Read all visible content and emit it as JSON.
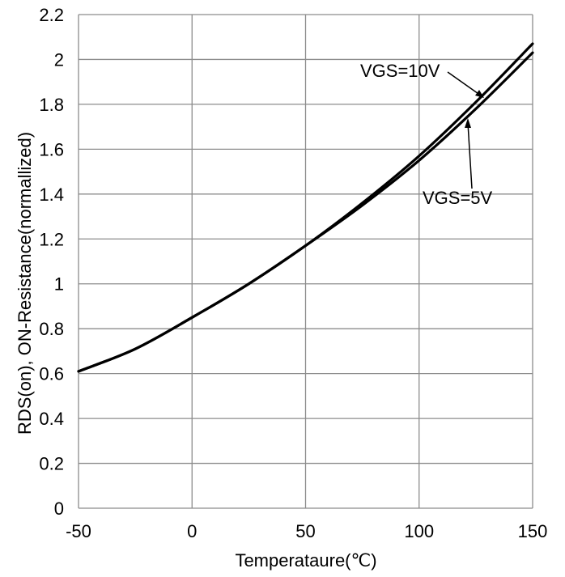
{
  "chart_data": {
    "type": "line",
    "xlabel": "Temperataure(℃)",
    "ylabel": "RDS(on), ON-Resistance(normallized)",
    "xlim": [
      -50,
      150
    ],
    "ylim": [
      0,
      2.2
    ],
    "xticks": [
      -50,
      0,
      50,
      100,
      150
    ],
    "yticks": [
      0,
      0.2,
      0.4,
      0.6,
      0.8,
      1,
      1.2,
      1.4,
      1.6,
      1.8,
      2,
      2.2
    ],
    "xtick_labels": [
      "-50",
      "0",
      "50",
      "100",
      "150"
    ],
    "ytick_labels": [
      "0",
      "0.2",
      "0.4",
      "0.6",
      "0.8",
      "1",
      "1.2",
      "1.4",
      "1.6",
      "1.8",
      "2",
      "2.2"
    ],
    "grid": true,
    "series": [
      {
        "name": "VGS=10V",
        "x": [
          -50,
          -25,
          0,
          25,
          50,
          75,
          100,
          125,
          150
        ],
        "values": [
          0.61,
          0.71,
          0.85,
          1.0,
          1.17,
          1.36,
          1.57,
          1.81,
          2.07
        ]
      },
      {
        "name": "VGS=5V",
        "x": [
          -50,
          -25,
          0,
          25,
          50,
          75,
          100,
          125,
          150
        ],
        "values": [
          0.61,
          0.71,
          0.85,
          1.0,
          1.17,
          1.35,
          1.55,
          1.78,
          2.03
        ]
      }
    ],
    "annotations": [
      {
        "text": "VGS=10V",
        "series": "VGS=10V"
      },
      {
        "text": "VGS=5V",
        "series": "VGS=5V"
      }
    ]
  }
}
